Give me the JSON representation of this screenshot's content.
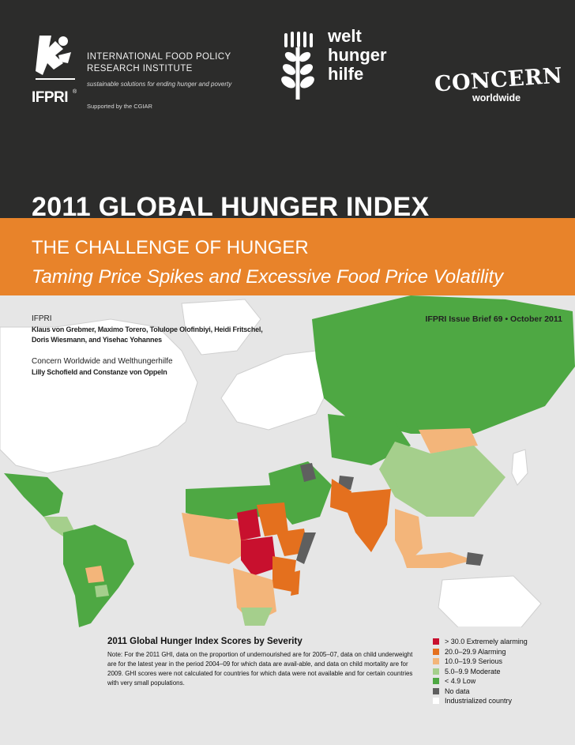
{
  "header": {
    "ifpri_name_line1": "INTERNATIONAL FOOD POLICY",
    "ifpri_name_line2": "RESEARCH INSTITUTE",
    "ifpri_tagline": "sustainable solutions for ending hunger and poverty",
    "ifpri_support": "Supported by the CGIAR",
    "ifpri_wordmark": "IFPRI",
    "ifpri_registered": "®",
    "whh_line1": "welt",
    "whh_line2": "hunger",
    "whh_line3": "hilfe",
    "concern_wordmark": "CONCERN",
    "concern_sub": "worldwide"
  },
  "title": "2011 GLOBAL HUNGER INDEX",
  "subtitle": "THE CHALLENGE OF HUNGER",
  "subtitle_italic": "Taming Price Spikes and Excessive Food Price Volatility",
  "authors": {
    "org1": "IFPRI",
    "names1_line1": "Klaus von Grebmer, Maximo Torero, Tolulope Olofinbiyi, Heidi Fritschel,",
    "names1_line2": "Doris Wiesmann, and Yisehac Yohannes",
    "org2": "Concern Worldwide and Welthungerhilfe",
    "names2": "Lilly Schofield and Constanze von Oppeln"
  },
  "issue": "IFPRI Issue Brief 69 • October 2011",
  "legend": {
    "title": "2011 Global Hunger Index Scores by Severity",
    "note": "Note: For the 2011 GHI, data on the proportion of undernourished are for 2005–07, data on child underweight are for the latest year in the period 2004–09 for which data are avail-able, and data on child mortality are for 2009. GHI scores were not calculated for countries for which data were not available and for certain countries with very small populations.",
    "items": [
      {
        "label": "> 30.0 Extremely alarming",
        "color": "#c8102e"
      },
      {
        "label": "20.0–29.9 Alarming",
        "color": "#e4701e"
      },
      {
        "label": "10.0–19.9 Serious",
        "color": "#f3b57a"
      },
      {
        "label": "5.0–9.9 Moderate",
        "color": "#a5cf8c"
      },
      {
        "label": "< 4.9 Low",
        "color": "#4ea843"
      },
      {
        "label": "No data",
        "color": "#5f5f5f"
      },
      {
        "label": "Industrialized country",
        "color": "#ffffff"
      }
    ]
  },
  "colors": {
    "header_bg": "#2c2c2b",
    "band": "#e8832a",
    "map_bg": "#e6e6e6"
  }
}
